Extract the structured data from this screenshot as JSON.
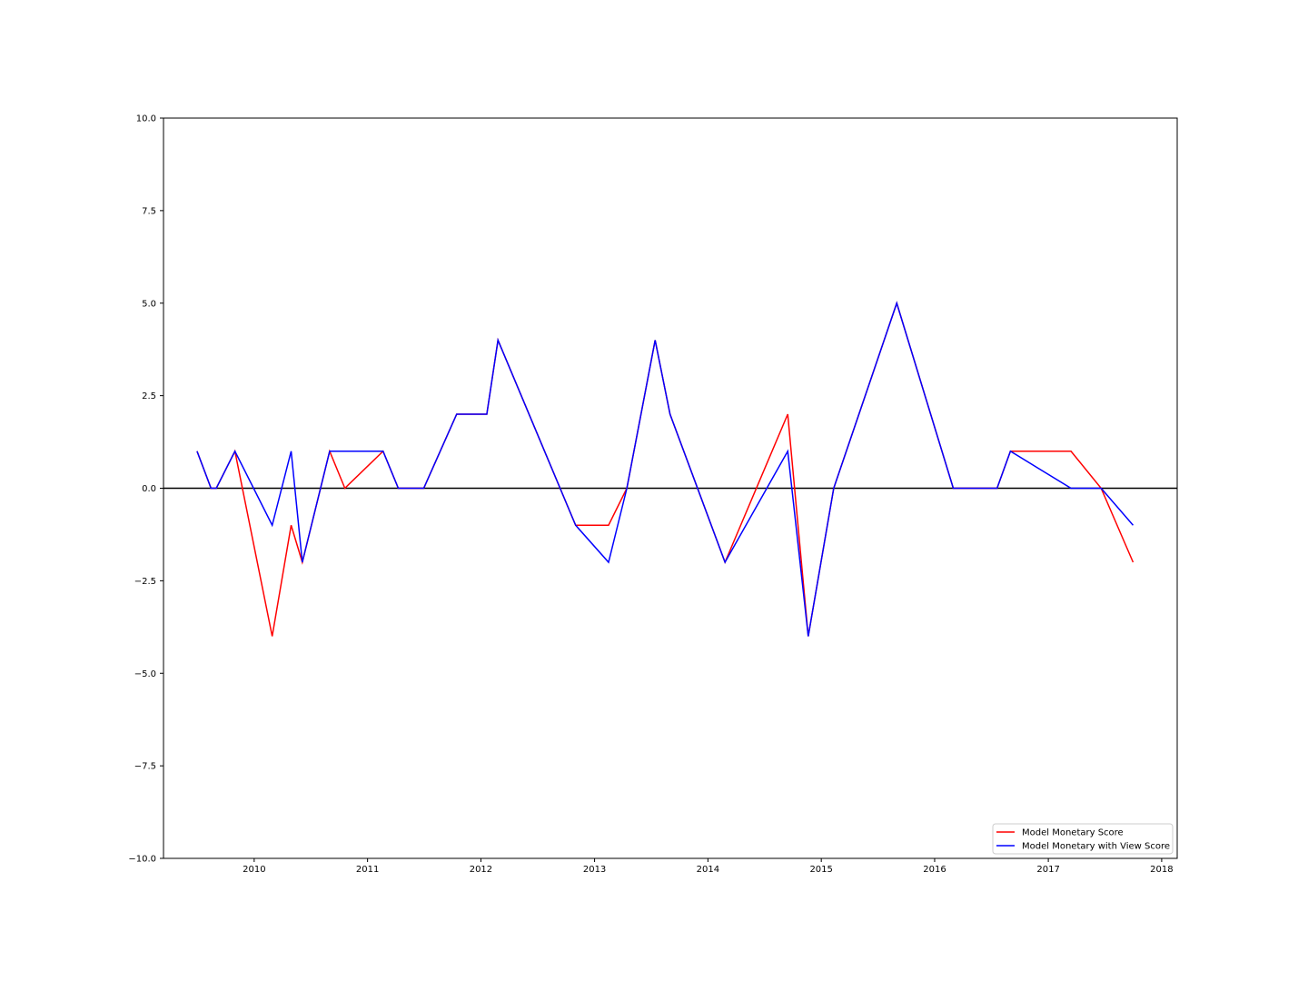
{
  "chart_data": {
    "type": "line",
    "title": "",
    "xlabel": "",
    "ylabel": "",
    "xlim": [
      "2009-03-15",
      "2018-02-20"
    ],
    "ylim": [
      -10,
      10
    ],
    "x_ticks": [
      "2010",
      "2011",
      "2012",
      "2013",
      "2014",
      "2015",
      "2016",
      "2017",
      "2018"
    ],
    "x_tick_dates": [
      "2010-01-01",
      "2011-01-01",
      "2012-01-01",
      "2013-01-01",
      "2014-01-01",
      "2015-01-01",
      "2016-01-01",
      "2017-01-01",
      "2018-01-01"
    ],
    "y_ticks": [
      -10,
      -7.5,
      -5,
      -2.5,
      0,
      2.5,
      5,
      7.5,
      10
    ],
    "y_tick_labels": [
      "−10.0",
      "−7.5",
      "−5.0",
      "−2.5",
      "0.0",
      "2.5",
      "5.0",
      "7.5",
      "10.0"
    ],
    "reference_line": {
      "y": 0,
      "color": "#000000"
    },
    "grid": false,
    "legend_position": "lower-right",
    "series": [
      {
        "name": "Model Monetary Score",
        "color": "#ff0000",
        "points": [
          [
            "2009-07-01",
            1
          ],
          [
            "2009-08-15",
            0
          ],
          [
            "2009-09-01",
            0
          ],
          [
            "2009-10-31",
            1
          ],
          [
            "2010-02-28",
            -4
          ],
          [
            "2010-04-30",
            -1
          ],
          [
            "2010-06-05",
            -2
          ],
          [
            "2010-09-01",
            1
          ],
          [
            "2010-10-20",
            0
          ],
          [
            "2011-02-20",
            1
          ],
          [
            "2011-04-10",
            0
          ],
          [
            "2011-07-01",
            0
          ],
          [
            "2011-10-15",
            2
          ],
          [
            "2012-01-20",
            2
          ],
          [
            "2012-02-25",
            4
          ],
          [
            "2012-11-01",
            -1
          ],
          [
            "2013-02-15",
            -1
          ],
          [
            "2013-04-15",
            0
          ],
          [
            "2013-07-15",
            4
          ],
          [
            "2013-09-01",
            2
          ],
          [
            "2014-02-25",
            -2
          ],
          [
            "2014-09-15",
            2
          ],
          [
            "2014-11-20",
            -4
          ],
          [
            "2015-02-10",
            0
          ],
          [
            "2015-09-01",
            5
          ],
          [
            "2016-03-01",
            0
          ],
          [
            "2016-07-20",
            0
          ],
          [
            "2016-09-01",
            1
          ],
          [
            "2017-03-15",
            1
          ],
          [
            "2017-06-20",
            0
          ],
          [
            "2017-10-01",
            -2
          ]
        ]
      },
      {
        "name": "Model Monetary with View Score",
        "color": "#0000ff",
        "points": [
          [
            "2009-07-01",
            1
          ],
          [
            "2009-08-15",
            0
          ],
          [
            "2009-09-01",
            0
          ],
          [
            "2009-10-31",
            1
          ],
          [
            "2010-02-28",
            -1
          ],
          [
            "2010-04-30",
            1
          ],
          [
            "2010-06-05",
            -2
          ],
          [
            "2010-09-01",
            1
          ],
          [
            "2011-02-20",
            1
          ],
          [
            "2011-04-10",
            0
          ],
          [
            "2011-07-01",
            0
          ],
          [
            "2011-10-15",
            2
          ],
          [
            "2012-01-20",
            2
          ],
          [
            "2012-02-25",
            4
          ],
          [
            "2012-11-01",
            -1
          ],
          [
            "2013-02-15",
            -2
          ],
          [
            "2013-04-15",
            0
          ],
          [
            "2013-07-15",
            4
          ],
          [
            "2013-09-01",
            2
          ],
          [
            "2014-02-25",
            -2
          ],
          [
            "2014-09-15",
            1
          ],
          [
            "2014-11-20",
            -4
          ],
          [
            "2015-02-10",
            0
          ],
          [
            "2015-09-01",
            5
          ],
          [
            "2016-03-01",
            0
          ],
          [
            "2016-07-20",
            0
          ],
          [
            "2016-09-01",
            1
          ],
          [
            "2017-03-15",
            0
          ],
          [
            "2017-06-20",
            0
          ],
          [
            "2017-10-01",
            -1
          ]
        ]
      }
    ]
  }
}
